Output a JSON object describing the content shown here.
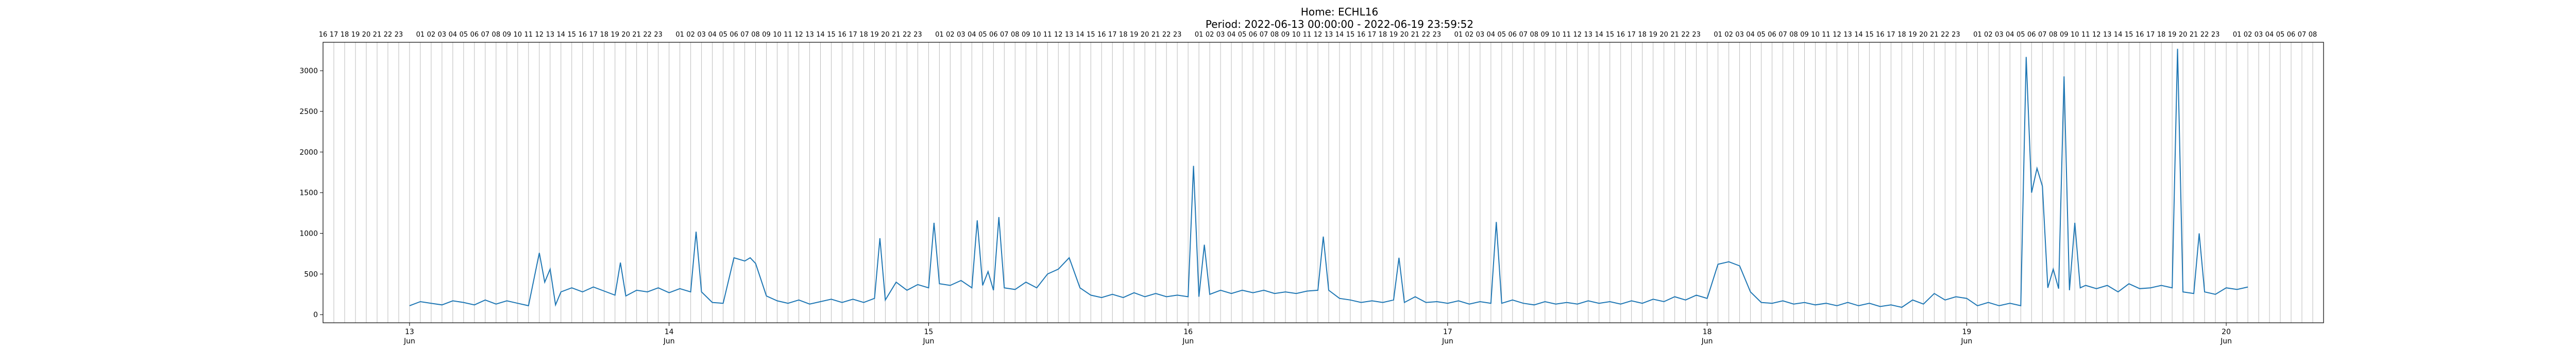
{
  "chart_data": {
    "type": "line",
    "title": "Home: ECHL16",
    "subtitle": "Period: 2022-06-13 00:00:00 - 2022-06-19 23:59:52",
    "xlabel": "",
    "ylabel": "",
    "x_range": [
      "2022-06-12 16:00",
      "2022-06-20 09:00"
    ],
    "ylim": [
      -100,
      3350
    ],
    "y_ticks": [
      0,
      500,
      1000,
      1500,
      2000,
      2500,
      3000
    ],
    "x_day_ticks": [
      {
        "date": "2022-06-13",
        "day": "13",
        "month": "Jun"
      },
      {
        "date": "2022-06-14",
        "day": "14",
        "month": "Jun"
      },
      {
        "date": "2022-06-15",
        "day": "15",
        "month": "Jun"
      },
      {
        "date": "2022-06-16",
        "day": "16",
        "month": "Jun"
      },
      {
        "date": "2022-06-17",
        "day": "17",
        "month": "Jun"
      },
      {
        "date": "2022-06-18",
        "day": "18",
        "month": "Jun"
      },
      {
        "date": "2022-06-19",
        "day": "19",
        "month": "Jun"
      },
      {
        "date": "2022-06-20",
        "day": "20",
        "month": "Jun"
      }
    ],
    "top_hour_labels": {
      "first": [
        "16",
        "17",
        "18",
        "19",
        "20",
        "21",
        "22",
        "23"
      ],
      "day": [
        "01",
        "02",
        "03",
        "04",
        "05",
        "06",
        "07",
        "08",
        "09",
        "10",
        "11",
        "12",
        "13",
        "14",
        "15",
        "16",
        "17",
        "18",
        "19",
        "20",
        "21",
        "22",
        "23"
      ],
      "last": [
        "01",
        "02",
        "03",
        "04",
        "05",
        "06",
        "07",
        "08"
      ]
    },
    "grid": "vertical hourly lines",
    "legend": "none",
    "series": [
      {
        "color": "#1f77b4",
        "points": [
          [
            "2022-06-13 00:00",
            110
          ],
          [
            "2022-06-13 01:00",
            160
          ],
          [
            "2022-06-13 02:00",
            140
          ],
          [
            "2022-06-13 03:00",
            120
          ],
          [
            "2022-06-13 04:00",
            170
          ],
          [
            "2022-06-13 05:00",
            150
          ],
          [
            "2022-06-13 06:00",
            120
          ],
          [
            "2022-06-13 07:00",
            180
          ],
          [
            "2022-06-13 08:00",
            130
          ],
          [
            "2022-06-13 09:00",
            170
          ],
          [
            "2022-06-13 10:00",
            140
          ],
          [
            "2022-06-13 11:00",
            110
          ],
          [
            "2022-06-13 12:00",
            760
          ],
          [
            "2022-06-13 12:30",
            400
          ],
          [
            "2022-06-13 13:00",
            560
          ],
          [
            "2022-06-13 13:30",
            120
          ],
          [
            "2022-06-13 14:00",
            280
          ],
          [
            "2022-06-13 15:00",
            330
          ],
          [
            "2022-06-13 16:00",
            280
          ],
          [
            "2022-06-13 17:00",
            340
          ],
          [
            "2022-06-13 18:00",
            290
          ],
          [
            "2022-06-13 19:00",
            240
          ],
          [
            "2022-06-13 19:30",
            640
          ],
          [
            "2022-06-13 20:00",
            230
          ],
          [
            "2022-06-13 21:00",
            300
          ],
          [
            "2022-06-13 22:00",
            280
          ],
          [
            "2022-06-13 23:00",
            330
          ],
          [
            "2022-06-14 00:00",
            270
          ],
          [
            "2022-06-14 01:00",
            320
          ],
          [
            "2022-06-14 02:00",
            280
          ],
          [
            "2022-06-14 02:30",
            1020
          ],
          [
            "2022-06-14 03:00",
            280
          ],
          [
            "2022-06-14 04:00",
            150
          ],
          [
            "2022-06-14 05:00",
            140
          ],
          [
            "2022-06-14 06:00",
            700
          ],
          [
            "2022-06-14 07:00",
            660
          ],
          [
            "2022-06-14 07:30",
            700
          ],
          [
            "2022-06-14 08:00",
            630
          ],
          [
            "2022-06-14 09:00",
            230
          ],
          [
            "2022-06-14 10:00",
            170
          ],
          [
            "2022-06-14 11:00",
            140
          ],
          [
            "2022-06-14 12:00",
            180
          ],
          [
            "2022-06-14 13:00",
            130
          ],
          [
            "2022-06-14 14:00",
            160
          ],
          [
            "2022-06-14 15:00",
            190
          ],
          [
            "2022-06-14 16:00",
            150
          ],
          [
            "2022-06-14 17:00",
            190
          ],
          [
            "2022-06-14 18:00",
            150
          ],
          [
            "2022-06-14 19:00",
            200
          ],
          [
            "2022-06-14 19:30",
            940
          ],
          [
            "2022-06-14 20:00",
            180
          ],
          [
            "2022-06-14 21:00",
            400
          ],
          [
            "2022-06-14 22:00",
            300
          ],
          [
            "2022-06-14 23:00",
            370
          ],
          [
            "2022-06-15 00:00",
            330
          ],
          [
            "2022-06-15 00:30",
            1130
          ],
          [
            "2022-06-15 01:00",
            380
          ],
          [
            "2022-06-15 02:00",
            360
          ],
          [
            "2022-06-15 03:00",
            420
          ],
          [
            "2022-06-15 04:00",
            330
          ],
          [
            "2022-06-15 04:30",
            1160
          ],
          [
            "2022-06-15 05:00",
            360
          ],
          [
            "2022-06-15 05:30",
            530
          ],
          [
            "2022-06-15 06:00",
            300
          ],
          [
            "2022-06-15 06:30",
            1200
          ],
          [
            "2022-06-15 07:00",
            330
          ],
          [
            "2022-06-15 08:00",
            310
          ],
          [
            "2022-06-15 09:00",
            400
          ],
          [
            "2022-06-15 10:00",
            330
          ],
          [
            "2022-06-15 11:00",
            500
          ],
          [
            "2022-06-15 12:00",
            560
          ],
          [
            "2022-06-15 13:00",
            700
          ],
          [
            "2022-06-15 14:00",
            330
          ],
          [
            "2022-06-15 15:00",
            240
          ],
          [
            "2022-06-15 16:00",
            210
          ],
          [
            "2022-06-15 17:00",
            250
          ],
          [
            "2022-06-15 18:00",
            210
          ],
          [
            "2022-06-15 19:00",
            270
          ],
          [
            "2022-06-15 20:00",
            220
          ],
          [
            "2022-06-15 21:00",
            260
          ],
          [
            "2022-06-15 22:00",
            220
          ],
          [
            "2022-06-15 23:00",
            240
          ],
          [
            "2022-06-16 00:00",
            220
          ],
          [
            "2022-06-16 00:30",
            1830
          ],
          [
            "2022-06-16 01:00",
            220
          ],
          [
            "2022-06-16 01:30",
            860
          ],
          [
            "2022-06-16 02:00",
            250
          ],
          [
            "2022-06-16 03:00",
            300
          ],
          [
            "2022-06-16 04:00",
            260
          ],
          [
            "2022-06-16 05:00",
            300
          ],
          [
            "2022-06-16 06:00",
            270
          ],
          [
            "2022-06-16 07:00",
            300
          ],
          [
            "2022-06-16 08:00",
            260
          ],
          [
            "2022-06-16 09:00",
            280
          ],
          [
            "2022-06-16 10:00",
            260
          ],
          [
            "2022-06-16 11:00",
            290
          ],
          [
            "2022-06-16 12:00",
            300
          ],
          [
            "2022-06-16 12:30",
            960
          ],
          [
            "2022-06-16 13:00",
            300
          ],
          [
            "2022-06-16 14:00",
            200
          ],
          [
            "2022-06-16 15:00",
            180
          ],
          [
            "2022-06-16 16:00",
            150
          ],
          [
            "2022-06-16 17:00",
            170
          ],
          [
            "2022-06-16 18:00",
            150
          ],
          [
            "2022-06-16 19:00",
            180
          ],
          [
            "2022-06-16 19:30",
            700
          ],
          [
            "2022-06-16 20:00",
            150
          ],
          [
            "2022-06-16 21:00",
            220
          ],
          [
            "2022-06-16 22:00",
            150
          ],
          [
            "2022-06-16 23:00",
            160
          ],
          [
            "2022-06-17 00:00",
            140
          ],
          [
            "2022-06-17 01:00",
            170
          ],
          [
            "2022-06-17 02:00",
            130
          ],
          [
            "2022-06-17 03:00",
            160
          ],
          [
            "2022-06-17 04:00",
            140
          ],
          [
            "2022-06-17 04:30",
            1140
          ],
          [
            "2022-06-17 05:00",
            140
          ],
          [
            "2022-06-17 06:00",
            180
          ],
          [
            "2022-06-17 07:00",
            140
          ],
          [
            "2022-06-17 08:00",
            120
          ],
          [
            "2022-06-17 09:00",
            160
          ],
          [
            "2022-06-17 10:00",
            130
          ],
          [
            "2022-06-17 11:00",
            150
          ],
          [
            "2022-06-17 12:00",
            130
          ],
          [
            "2022-06-17 13:00",
            170
          ],
          [
            "2022-06-17 14:00",
            140
          ],
          [
            "2022-06-17 15:00",
            160
          ],
          [
            "2022-06-17 16:00",
            130
          ],
          [
            "2022-06-17 17:00",
            170
          ],
          [
            "2022-06-17 18:00",
            140
          ],
          [
            "2022-06-17 19:00",
            190
          ],
          [
            "2022-06-17 20:00",
            160
          ],
          [
            "2022-06-17 21:00",
            220
          ],
          [
            "2022-06-17 22:00",
            180
          ],
          [
            "2022-06-17 23:00",
            240
          ],
          [
            "2022-06-18 00:00",
            200
          ],
          [
            "2022-06-18 01:00",
            620
          ],
          [
            "2022-06-18 02:00",
            650
          ],
          [
            "2022-06-18 03:00",
            600
          ],
          [
            "2022-06-18 04:00",
            280
          ],
          [
            "2022-06-18 05:00",
            150
          ],
          [
            "2022-06-18 06:00",
            140
          ],
          [
            "2022-06-18 07:00",
            170
          ],
          [
            "2022-06-18 08:00",
            130
          ],
          [
            "2022-06-18 09:00",
            150
          ],
          [
            "2022-06-18 10:00",
            120
          ],
          [
            "2022-06-18 11:00",
            140
          ],
          [
            "2022-06-18 12:00",
            110
          ],
          [
            "2022-06-18 13:00",
            150
          ],
          [
            "2022-06-18 14:00",
            110
          ],
          [
            "2022-06-18 15:00",
            140
          ],
          [
            "2022-06-18 16:00",
            100
          ],
          [
            "2022-06-18 17:00",
            120
          ],
          [
            "2022-06-18 18:00",
            90
          ],
          [
            "2022-06-18 19:00",
            180
          ],
          [
            "2022-06-18 20:00",
            130
          ],
          [
            "2022-06-18 21:00",
            260
          ],
          [
            "2022-06-18 22:00",
            180
          ],
          [
            "2022-06-18 23:00",
            220
          ],
          [
            "2022-06-19 00:00",
            200
          ],
          [
            "2022-06-19 01:00",
            110
          ],
          [
            "2022-06-19 02:00",
            150
          ],
          [
            "2022-06-19 03:00",
            110
          ],
          [
            "2022-06-19 04:00",
            140
          ],
          [
            "2022-06-19 05:00",
            110
          ],
          [
            "2022-06-19 05:30",
            3170
          ],
          [
            "2022-06-19 06:00",
            1500
          ],
          [
            "2022-06-19 06:30",
            1800
          ],
          [
            "2022-06-19 07:00",
            1580
          ],
          [
            "2022-06-19 07:30",
            330
          ],
          [
            "2022-06-19 08:00",
            560
          ],
          [
            "2022-06-19 08:30",
            320
          ],
          [
            "2022-06-19 09:00",
            2930
          ],
          [
            "2022-06-19 09:30",
            300
          ],
          [
            "2022-06-19 10:00",
            1130
          ],
          [
            "2022-06-19 10:30",
            330
          ],
          [
            "2022-06-19 11:00",
            360
          ],
          [
            "2022-06-19 12:00",
            320
          ],
          [
            "2022-06-19 13:00",
            360
          ],
          [
            "2022-06-19 14:00",
            280
          ],
          [
            "2022-06-19 15:00",
            380
          ],
          [
            "2022-06-19 16:00",
            320
          ],
          [
            "2022-06-19 17:00",
            330
          ],
          [
            "2022-06-19 18:00",
            360
          ],
          [
            "2022-06-19 19:00",
            330
          ],
          [
            "2022-06-19 19:30",
            3270
          ],
          [
            "2022-06-19 20:00",
            280
          ],
          [
            "2022-06-19 21:00",
            260
          ],
          [
            "2022-06-19 21:30",
            1000
          ],
          [
            "2022-06-19 22:00",
            280
          ],
          [
            "2022-06-19 23:00",
            250
          ],
          [
            "2022-06-20 00:00",
            330
          ],
          [
            "2022-06-20 01:00",
            310
          ],
          [
            "2022-06-20 02:00",
            340
          ]
        ]
      }
    ]
  }
}
